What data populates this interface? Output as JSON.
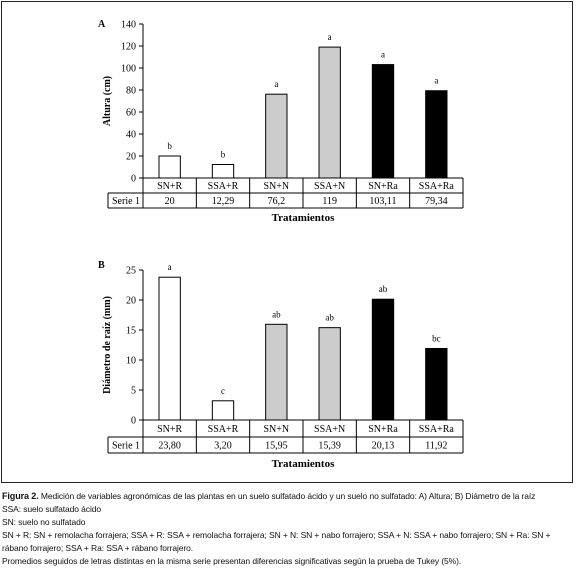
{
  "chart_data": [
    {
      "panel": "A",
      "type": "bar",
      "ylabel": "Altura (cm)",
      "xlabel": "Tratamientos",
      "ylim": [
        0,
        140
      ],
      "yticks": [
        0,
        20,
        40,
        60,
        80,
        100,
        120,
        140
      ],
      "categories": [
        "SN+R",
        "SSA+R",
        "SN+N",
        "SSA+N",
        "SN+Ra",
        "SSA+Ra"
      ],
      "series": [
        {
          "name": "Serie 1",
          "values": [
            20,
            12.29,
            76.2,
            119,
            103.11,
            79.34
          ]
        }
      ],
      "value_labels": [
        "20",
        "12,29",
        "76,2",
        "119",
        "103,11",
        "79,34"
      ],
      "letters": [
        "b",
        "b",
        "a",
        "a",
        "a",
        "a"
      ],
      "bar_fills": [
        "#ffffff",
        "#ffffff",
        "#cccccc",
        "#cccccc",
        "#000000",
        "#000000"
      ]
    },
    {
      "panel": "B",
      "type": "bar",
      "ylabel": "Diámetro de raíz (mm)",
      "xlabel": "Tratamientos",
      "ylim": [
        0,
        25
      ],
      "yticks": [
        0,
        5,
        10,
        15,
        20,
        25
      ],
      "categories": [
        "SN+R",
        "SSA+R",
        "SN+N",
        "SSA+N",
        "SN+Ra",
        "SSA+Ra"
      ],
      "series": [
        {
          "name": "Serie 1",
          "values": [
            23.8,
            3.2,
            15.95,
            15.39,
            20.13,
            11.92
          ]
        }
      ],
      "value_labels": [
        "23,80",
        "3,20",
        "15,95",
        "15,39",
        "20,13",
        "11,92"
      ],
      "letters": [
        "a",
        "c",
        "ab",
        "ab",
        "ab",
        "bc"
      ],
      "bar_fills": [
        "#ffffff",
        "#ffffff",
        "#cccccc",
        "#cccccc",
        "#000000",
        "#000000"
      ]
    }
  ],
  "caption": {
    "figure_label": "Figura 2.",
    "title": " Medición de variables agronómicas de las plantas en un suelo sulfatado ácido y un suelo no sulfatado: A) Altura; B) Diámetro de la raíz",
    "line1": "SSA: suelo sulfatado ácido",
    "line2": "SN: suelo no sulfatado",
    "line3": "SN + R: SN + remolacha forrajera; SSA + R: SSA + remolacha forrajera; SN + N: SN + nabo forrajero; SSA + N: SSA + nabo forrajero; SN + Ra: SN + rábano forrajero; SSA + Ra: SSA + rábano forrajero.",
    "line4": "Promedios seguidos de letras distintas en la misma serie presentan diferencias significativas según la prueba de Tukey (5%)."
  }
}
